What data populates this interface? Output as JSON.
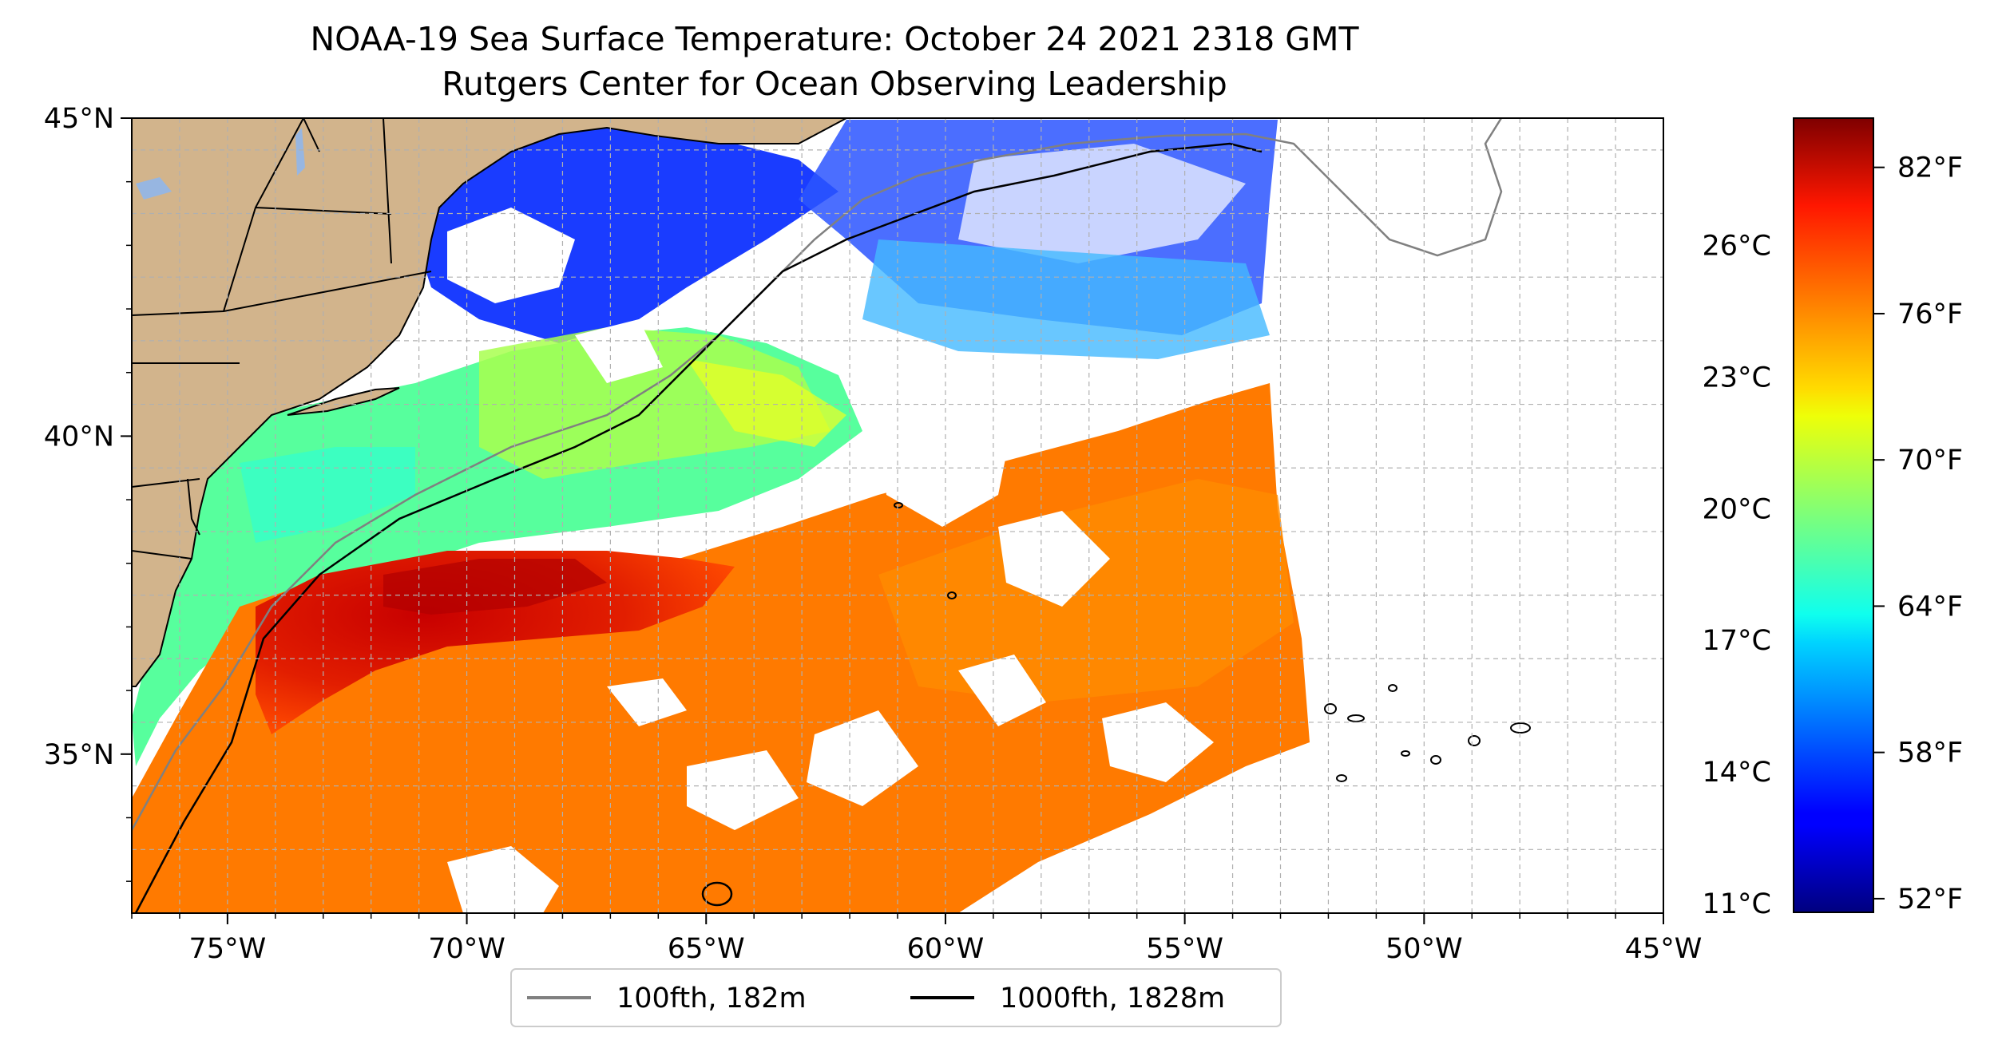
{
  "title": "NOAA-19 Sea Surface Temperature: October 24 2021 2318 GMT",
  "subtitle": "Rutgers Center for Ocean Observing Leadership",
  "map": {
    "lon_range": [
      -77,
      -45
    ],
    "lat_range": [
      32.5,
      45
    ],
    "lon_ticks": [
      {
        "value": -75,
        "label": "75°W"
      },
      {
        "value": -70,
        "label": "70°W"
      },
      {
        "value": -65,
        "label": "65°W"
      },
      {
        "value": -60,
        "label": "60°W"
      },
      {
        "value": -55,
        "label": "55°W"
      },
      {
        "value": -50,
        "label": "50°W"
      },
      {
        "value": -45,
        "label": "45°W"
      }
    ],
    "lat_ticks": [
      {
        "value": 45,
        "label": "45°N"
      },
      {
        "value": 40,
        "label": "40°N"
      },
      {
        "value": 35,
        "label": "35°N"
      }
    ],
    "grid": true,
    "land_color": "#d2b48c",
    "lake_color": "#97b6e1"
  },
  "colorbar": {
    "colormap": "jet",
    "celsius_ticks": [
      {
        "value": 11,
        "label": "11°C"
      },
      {
        "value": 14,
        "label": "14°C"
      },
      {
        "value": 17,
        "label": "17°C"
      },
      {
        "value": 20,
        "label": "20°C"
      },
      {
        "value": 23,
        "label": "23°C"
      },
      {
        "value": 26,
        "label": "26°C"
      }
    ],
    "fahrenheit_ticks": [
      {
        "value": 52,
        "label": "52°F"
      },
      {
        "value": 58,
        "label": "58°F"
      },
      {
        "value": 64,
        "label": "64°F"
      },
      {
        "value": 70,
        "label": "70°F"
      },
      {
        "value": 76,
        "label": "76°F"
      },
      {
        "value": 82,
        "label": "82°F"
      }
    ]
  },
  "legend": {
    "entries": [
      {
        "label": "100fth, 182m",
        "color": "#808080"
      },
      {
        "label": "1000fth, 1828m",
        "color": "#000000"
      }
    ]
  }
}
